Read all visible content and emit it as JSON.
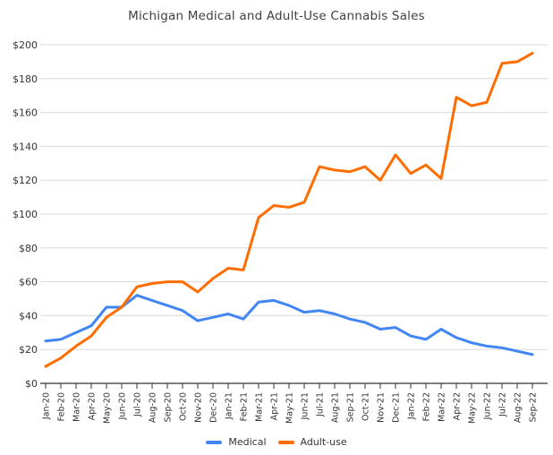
{
  "chart": {
    "colors": {
      "grid": "#d9d9d9",
      "axis": "#333333",
      "title_text": "#404040",
      "label_text": "#333333",
      "background": "#ffffff"
    }
  },
  "chart_data": {
    "type": "line",
    "title": "Michigan Medical and Adult-Use Cannabis Sales",
    "categories": [
      "Jan-20",
      "Feb-20",
      "Mar-20",
      "Apr-20",
      "May-20",
      "Jun-20",
      "Jul-20",
      "Aug-20",
      "Sep-20",
      "Oct-20",
      "Nov-20",
      "Dec-20",
      "Jan-21",
      "Feb-21",
      "Mar-21",
      "Apr-21",
      "May-21",
      "Jun-21",
      "Jul-21",
      "Aug-21",
      "Sep-21",
      "Oct-21",
      "Nov-21",
      "Dec-21",
      "Jan-22",
      "Feb-22",
      "Mar-22",
      "Apr-22",
      "May-22",
      "Jun-22",
      "Jul-22",
      "Aug-22",
      "Sep-22"
    ],
    "series": [
      {
        "name": "Medical",
        "color": "#4285f4",
        "values": [
          25,
          26,
          30,
          34,
          45,
          45,
          52,
          49,
          46,
          43,
          37,
          39,
          41,
          38,
          48,
          49,
          46,
          42,
          43,
          41,
          38,
          36,
          32,
          33,
          28,
          26,
          32,
          27,
          24,
          22,
          21,
          19,
          17
        ]
      },
      {
        "name": "Adult-use",
        "color": "#ff6d01",
        "values": [
          10,
          15,
          22,
          28,
          39,
          45,
          57,
          59,
          60,
          60,
          54,
          62,
          68,
          67,
          98,
          105,
          104,
          107,
          128,
          126,
          125,
          128,
          120,
          135,
          124,
          129,
          121,
          169,
          164,
          166,
          189,
          190,
          195
        ]
      }
    ],
    "xlabel": "",
    "ylabel": "",
    "ylim": [
      0,
      200
    ],
    "ytick_step": 20,
    "ytick_labels": [
      "$0",
      "$20",
      "$40",
      "$60",
      "$80",
      "$100",
      "$120",
      "$140",
      "$160",
      "$180",
      "$200"
    ],
    "grid": true,
    "legend_position": "bottom-center"
  }
}
